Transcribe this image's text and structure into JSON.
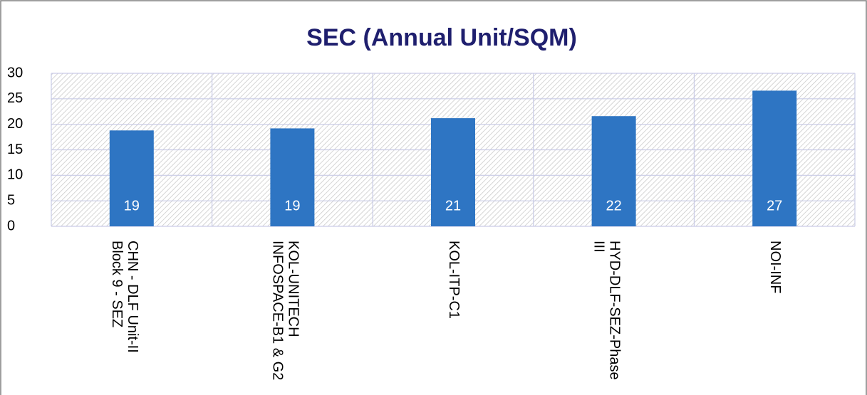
{
  "chart_data": {
    "type": "bar",
    "title": "SEC (Annual Unit/SQM)",
    "categories": [
      "CHN - DLF Unit-II Block 9 - SEZ",
      "KOL-UNITECH INFOSPACE-B1 & G2",
      "KOL-ITP-C1",
      "HYD-DLF-SEZ-Phase III",
      "NOI-INF"
    ],
    "values": [
      18.8,
      19.2,
      21.2,
      21.6,
      26.6
    ],
    "value_labels": [
      "19",
      "19",
      "21",
      "22",
      "27"
    ],
    "color": "#2e75c3",
    "ylim": [
      0,
      30
    ],
    "yticks": [
      0,
      5,
      10,
      15,
      20,
      25,
      30
    ],
    "grid": true
  }
}
